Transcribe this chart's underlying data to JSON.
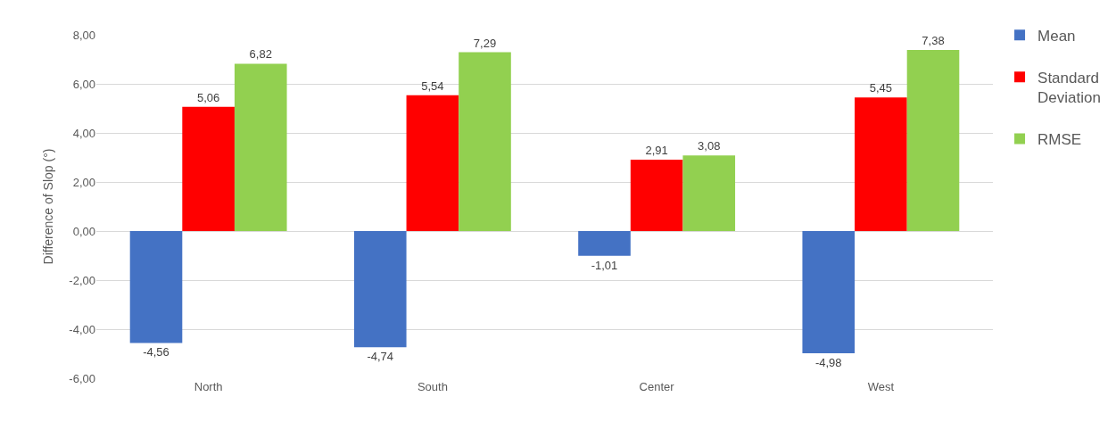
{
  "chart_data": {
    "type": "bar",
    "ylabel": "Difference of Slop (°)",
    "categories": [
      "North",
      "South",
      "Center",
      "West"
    ],
    "series": [
      {
        "name": "Mean",
        "color": "#4472c4",
        "values": [
          -4.56,
          -4.74,
          -1.01,
          -4.98
        ],
        "value_labels": [
          "-4,56",
          "-4,74",
          "-1,01",
          "-4,98"
        ]
      },
      {
        "name": "Standard Deviation",
        "color": "#ff0000",
        "values": [
          5.06,
          5.54,
          2.91,
          5.45
        ],
        "value_labels": [
          "5,06",
          "5,54",
          "2,91",
          "5,45"
        ]
      },
      {
        "name": "RMSE",
        "color": "#92d050",
        "values": [
          6.82,
          7.29,
          3.08,
          7.38
        ],
        "value_labels": [
          "6,82",
          "7,29",
          "3,08",
          "7,38"
        ]
      }
    ],
    "ylim": [
      -6,
      8
    ],
    "yticks": [
      {
        "value": -6,
        "label": "-6,00"
      },
      {
        "value": -4,
        "label": "-4,00"
      },
      {
        "value": -2,
        "label": "-2,00"
      },
      {
        "value": 0,
        "label": "0,00"
      },
      {
        "value": 2,
        "label": "2,00"
      },
      {
        "value": 4,
        "label": "4,00"
      },
      {
        "value": 6,
        "label": "6,00"
      },
      {
        "value": 8,
        "label": "8,00"
      }
    ],
    "grid": "y",
    "legend": "top right"
  }
}
